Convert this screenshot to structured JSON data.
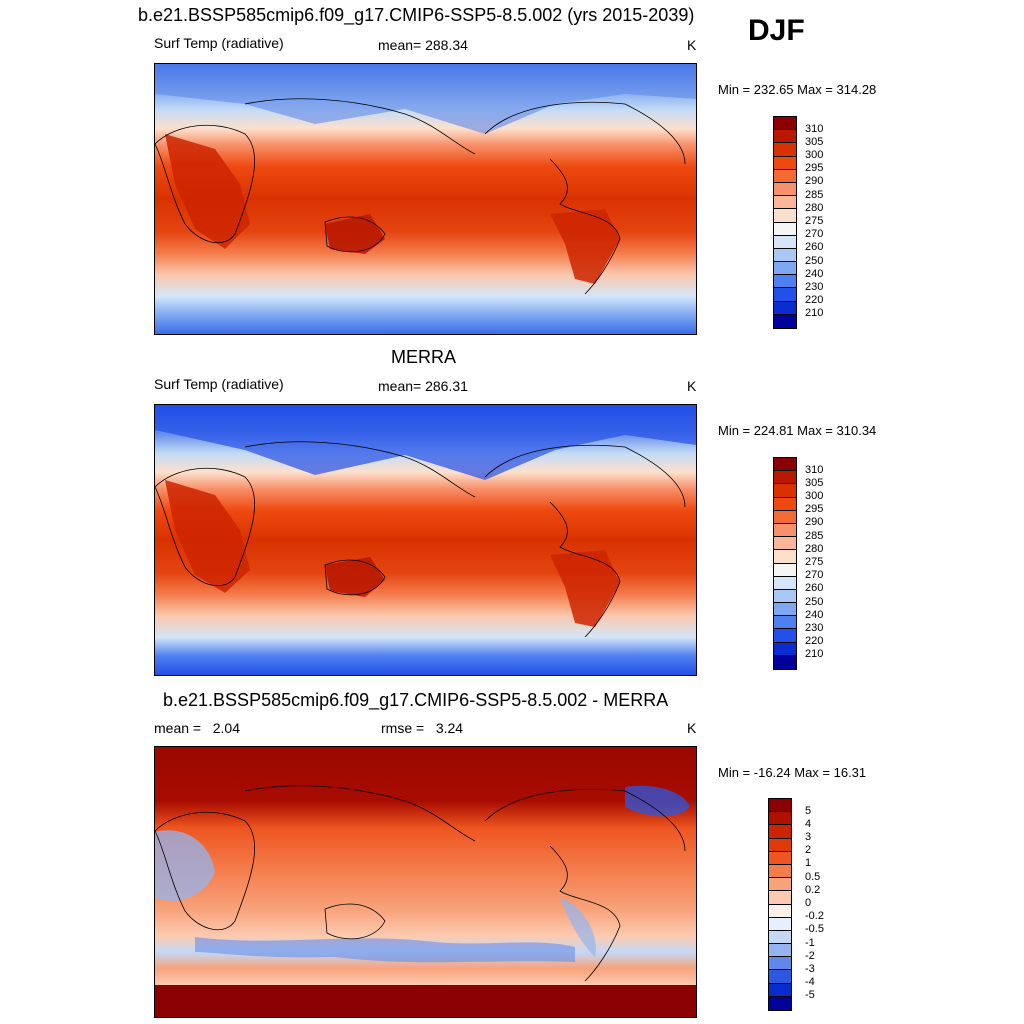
{
  "header": {
    "case_title": "b.e21.BSSP585cmip6.f09_g17.CMIP6-SSP5-8.5.002 (yrs 2015-2039)",
    "season": "DJF"
  },
  "panels": [
    {
      "title": "",
      "left_label": "Surf Temp (radiative)",
      "center_label": "mean= 288.34",
      "units": "K",
      "minmax": "Min = 232.65 Max = 314.28",
      "colorbar": {
        "labels": [
          "310",
          "305",
          "300",
          "295",
          "290",
          "285",
          "280",
          "275",
          "270",
          "260",
          "250",
          "240",
          "230",
          "220",
          "210"
        ],
        "colors": [
          "#8b0000",
          "#b81800",
          "#d93200",
          "#ee4a10",
          "#f46a35",
          "#f8906a",
          "#fbb69a",
          "#fde0cc",
          "#f5f5f5",
          "#d4e6f8",
          "#a8c8f5",
          "#7ea8f2",
          "#4f80ef",
          "#2350e8",
          "#0a2cd0",
          "#00009a"
        ]
      }
    },
    {
      "title": "MERRA",
      "left_label": "Surf Temp (radiative)",
      "center_label": "mean= 286.31",
      "units": "K",
      "minmax": "Min = 224.81 Max = 310.34",
      "colorbar": {
        "labels": [
          "310",
          "305",
          "300",
          "295",
          "290",
          "285",
          "280",
          "275",
          "270",
          "260",
          "250",
          "240",
          "230",
          "220",
          "210"
        ],
        "colors": [
          "#8b0000",
          "#b81800",
          "#d93200",
          "#ee4a10",
          "#f46a35",
          "#f8906a",
          "#fbb69a",
          "#fde0cc",
          "#f5f5f5",
          "#d4e6f8",
          "#a8c8f5",
          "#7ea8f2",
          "#4f80ef",
          "#2350e8",
          "#0a2cd0",
          "#00009a"
        ]
      }
    },
    {
      "title": "b.e21.BSSP585cmip6.f09_g17.CMIP6-SSP5-8.5.002 - MERRA",
      "left_label": "mean =   2.04",
      "center_label": "rmse =   3.24",
      "units": "K",
      "minmax": "Min = -16.24 Max =  16.31",
      "colorbar": {
        "labels": [
          "5",
          "4",
          "3",
          "2",
          "1",
          "0.5",
          "0.2",
          "0",
          "-0.2",
          "-0.5",
          "-1",
          "-2",
          "-3",
          "-4",
          "-5"
        ],
        "colors": [
          "#8b0000",
          "#b01000",
          "#cc2400",
          "#e03a08",
          "#ee5520",
          "#f47b4a",
          "#f8a27a",
          "#fccab0",
          "#fdf0e6",
          "#e6f0fc",
          "#c4d8f6",
          "#94b4f0",
          "#5f88ea",
          "#2c58e0",
          "#0a2ccc",
          "#00009a"
        ]
      }
    }
  ]
}
